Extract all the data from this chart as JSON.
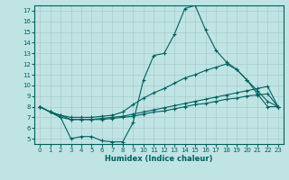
{
  "xlabel": "Humidex (Indice chaleur)",
  "ylabel": "",
  "xlim": [
    -0.5,
    23.5
  ],
  "ylim": [
    4.5,
    17.5
  ],
  "yticks": [
    5,
    6,
    7,
    8,
    9,
    10,
    11,
    12,
    13,
    14,
    15,
    16,
    17
  ],
  "xticks": [
    0,
    1,
    2,
    3,
    4,
    5,
    6,
    7,
    8,
    9,
    10,
    11,
    12,
    13,
    14,
    15,
    16,
    17,
    18,
    19,
    20,
    21,
    22,
    23
  ],
  "bg_color": "#c0e4e4",
  "line_color": "#006060",
  "grid_color": "#a8cccc",
  "line1_x": [
    0,
    1,
    2,
    3,
    4,
    5,
    6,
    7,
    8,
    9,
    10,
    11,
    12,
    13,
    14,
    15,
    16,
    17,
    18,
    19,
    20,
    21,
    22,
    23
  ],
  "line1_y": [
    8.0,
    7.5,
    7.0,
    5.0,
    5.2,
    5.2,
    4.8,
    4.7,
    4.7,
    6.5,
    10.5,
    12.8,
    13.0,
    14.8,
    17.2,
    17.5,
    15.2,
    13.3,
    12.2,
    11.5,
    10.5,
    9.2,
    8.0,
    8.0
  ],
  "line2_x": [
    0,
    1,
    2,
    3,
    4,
    5,
    6,
    7,
    8,
    9,
    10,
    11,
    12,
    13,
    14,
    15,
    16,
    17,
    18,
    19,
    20,
    21,
    22,
    23
  ],
  "line2_y": [
    8.0,
    7.5,
    7.2,
    7.0,
    7.0,
    7.0,
    7.1,
    7.2,
    7.5,
    8.2,
    8.8,
    9.3,
    9.7,
    10.2,
    10.7,
    11.0,
    11.4,
    11.7,
    12.0,
    11.5,
    10.5,
    9.5,
    8.5,
    8.0
  ],
  "line3_x": [
    0,
    1,
    2,
    3,
    4,
    5,
    6,
    7,
    8,
    9,
    10,
    11,
    12,
    13,
    14,
    15,
    16,
    17,
    18,
    19,
    20,
    21,
    22,
    23
  ],
  "line3_y": [
    8.0,
    7.5,
    7.0,
    6.8,
    6.8,
    6.8,
    6.9,
    7.0,
    7.1,
    7.3,
    7.5,
    7.7,
    7.9,
    8.1,
    8.3,
    8.5,
    8.7,
    8.9,
    9.1,
    9.3,
    9.5,
    9.7,
    9.9,
    8.0
  ],
  "line4_x": [
    0,
    1,
    2,
    3,
    4,
    5,
    6,
    7,
    8,
    9,
    10,
    11,
    12,
    13,
    14,
    15,
    16,
    17,
    18,
    19,
    20,
    21,
    22,
    23
  ],
  "line4_y": [
    8.0,
    7.5,
    7.2,
    6.8,
    6.8,
    6.8,
    6.8,
    6.9,
    7.0,
    7.1,
    7.3,
    7.5,
    7.6,
    7.8,
    8.0,
    8.2,
    8.3,
    8.5,
    8.7,
    8.8,
    9.0,
    9.1,
    9.2,
    8.0
  ]
}
